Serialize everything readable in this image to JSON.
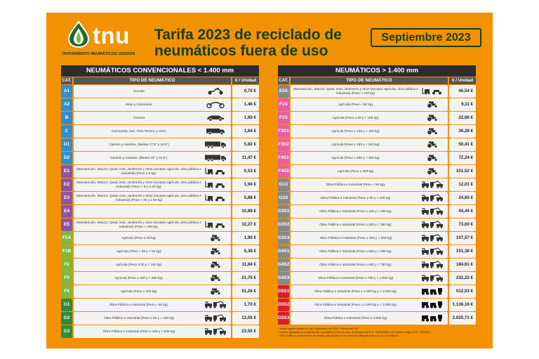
{
  "brand": {
    "logo_text": "tnu",
    "subtitle": "TRATAMIENTO NEUMÁTICOS USADOS"
  },
  "title": "Tarifa 2023 de reciclado de neumáticos fuera de uso",
  "date_label": "Septiembre 2023",
  "colors": {
    "background": "#f29200",
    "title_text": "#173d1c",
    "blue": "#2f8fcf",
    "purple": "#8d56a3",
    "green_light": "#7cba3b",
    "green_dark": "#2e8b3e",
    "pink": "#e9609d",
    "grey": "#888888",
    "red": "#d81e2b",
    "dark_header": "#2d2d2d"
  },
  "left_table": {
    "title": "NEUMÁTICOS CONVENCIONALES < 1.400 mm",
    "col_cat": "CAT.",
    "col_type": "TIPO DE NEUMÁTICO",
    "col_price": "€ / Unidad",
    "rows": [
      {
        "cat": "A1",
        "desc": "Scooter",
        "price": "0,70 €",
        "color": "#2f8fcf",
        "icon": "scooter-icon"
      },
      {
        "cat": "A2",
        "desc": "Moto y Ciclomotor",
        "price": "1,46 €",
        "color": "#2f8fcf",
        "icon": "motorcycle-icon"
      },
      {
        "cat": "B",
        "desc": "Turismo",
        "price": "1,60 €",
        "color": "#2f8fcf",
        "icon": "car-icon"
      },
      {
        "cat": "C",
        "desc": "Camioneta, 4x4, Todo Terreno y SUV.",
        "price": "1,84 €",
        "color": "#2f8fcf",
        "icon": "van-icon"
      },
      {
        "cat": "D1",
        "desc": "Camión y Autobús. (llantas 17,5\" y 19,5\")",
        "price": "5,82 €",
        "color": "#2f8fcf",
        "icon": "truck-icon"
      },
      {
        "cat": "D2",
        "desc": "Camión y Autobús. (llantas 20\" y 22,5\")",
        "price": "11,47 €",
        "color": "#2f8fcf",
        "icon": "truck-icon"
      },
      {
        "cat": "E1",
        "desc": "Manutención, Macizo, Quad, Kart, Jardinería y otros (excepto agrícola, obra pública e industrial) (Peso ≤ 5 kg).",
        "price": "0,53 €",
        "color": "#8d56a3",
        "icon": "forklift-quad-icon"
      },
      {
        "cat": "E2",
        "desc": "Manutención, Macizo, Quad, Kart, Jardinería y otros (excepto agrícola, obra pública e industrial) (Peso > 5 y ≤ 25 kg).",
        "price": "1,94 €",
        "color": "#8d56a3",
        "icon": "forklift-quad-icon"
      },
      {
        "cat": "E3",
        "desc": "Manutención, Macizo, Quad, Kart, Jardinería y otros (excepto agrícola, obra pública e industrial) (Peso > 25 y ≤ 50 kg)",
        "price": "5,88 €",
        "color": "#8d56a3",
        "icon": "forklift-quad-icon"
      },
      {
        "cat": "E4",
        "desc": "",
        "price": "10,89 €",
        "color": "#8d56a3",
        "icon": ""
      },
      {
        "cat": "E5",
        "desc": "Manutención, Macizo, Quad, Kart, Jardinería y otros (excepto agrícola, obra pública e industrial) (Peso > 100 kg).",
        "price": "32,27 €",
        "color": "#8d56a3",
        "icon": "forklift-quad-icon"
      },
      {
        "cat": "F1A",
        "desc": "Agrícola (Peso ≤ 25 kg).",
        "price": "1,90 €",
        "color": "#7cba3b",
        "icon": "tractor-icon"
      },
      {
        "cat": "F1B",
        "desc": "Agrícola (Peso > 25 y < 50 kg).",
        "price": "5,38 €",
        "color": "#7cba3b",
        "icon": "tractor-icon"
      },
      {
        "cat": "F2",
        "desc": "Agrícola (Peso ≥ 50 y < 100 kg).",
        "price": "11,84 €",
        "color": "#7cba3b",
        "icon": "tractor-icon"
      },
      {
        "cat": "F3",
        "desc": "Agrícola (Peso ≥ 100 y < 200 kg).",
        "price": "21,76 €",
        "color": "#7cba3b",
        "icon": "tractor-icon"
      },
      {
        "cat": "F4",
        "desc": "Agrícola (Peso ≥ 200 kg).",
        "price": "51,26 €",
        "color": "#7cba3b",
        "icon": "tractor-icon"
      },
      {
        "cat": "G1",
        "desc": "Obra Pública e Industrial (Peso < 50 kg).",
        "price": "1,70 €",
        "color": "#2e8b3e",
        "icon": "construction-icon"
      },
      {
        "cat": "G2",
        "desc": "Obra Pública e Industrial (Peso ≥ 50 y < 100 kg)",
        "price": "13,05 €",
        "color": "#2e8b3e",
        "icon": "construction-icon"
      },
      {
        "cat": "G3",
        "desc": "Obra Pública e Industrial (Peso ≥ 100 y < 500 kg)",
        "price": "23,50 €",
        "color": "#2e8b3e",
        "icon": "construction-icon"
      }
    ]
  },
  "right_table": {
    "title": "NEUMÁTICOS > 1.400 mm",
    "col_cat": "CAT.",
    "col_type": "TIPO DE NEUMÁTICO",
    "col_price": "€ / Unidad",
    "rows": [
      {
        "cat": "E5S",
        "desc": "Manutención, Macizo, Quad, Kart, Jardinería y otros (excepto agrícola, obra pública e industrial) (Peso > 100 kg).",
        "price": "46,54 €",
        "color": "#888888",
        "icon": "forklift-quad-icon"
      },
      {
        "cat": "F1S",
        "desc": "Agrícola (Peso < 50 kg).",
        "price": "9,11 €",
        "color": "#e9609d",
        "icon": "tractor-icon"
      },
      {
        "cat": "F2S",
        "desc": "Agrícola (Peso ≥ 50 y < 100 kg).",
        "price": "22,66 €",
        "color": "#e9609d",
        "icon": "tractor-icon"
      },
      {
        "cat": "F3S1",
        "desc": "Agrícola (Peso ≥ 100 y < 150 kg).",
        "price": "36,28 €",
        "color": "#e9609d",
        "icon": "tractor-icon"
      },
      {
        "cat": "F3S2",
        "desc": "Agrícola (Peso ≥ 150 y < 200 kg).",
        "price": "50,41 €",
        "color": "#e9609d",
        "icon": "tractor-icon"
      },
      {
        "cat": "F4S1",
        "desc": "Agrícola (Peso ≥ 200 y < 300 kg).",
        "price": "72,24 €",
        "color": "#e9609d",
        "icon": "tractor-icon"
      },
      {
        "cat": "F4S2",
        "desc": "Agrícola (Peso ≥ 300 kg).",
        "price": "101,52 €",
        "color": "#e9609d",
        "icon": "tractor-icon"
      },
      {
        "cat": "G1S",
        "desc": "Obra Pública e Industrial (Peso < 50 kg).",
        "price": "12,01 €",
        "color": "#888888",
        "icon": "construction-icon"
      },
      {
        "cat": "G2S",
        "desc": "Obra Pública e Industrial (Peso ≥ 50 y < 100 kg).",
        "price": "24,65 €",
        "color": "#888888",
        "icon": "construction-icon"
      },
      {
        "cat": "G3S1",
        "desc": "Obra Pública e Industrial (Peso ≥ 100 y < 200 kg).",
        "price": "44,44 €",
        "color": "#888888",
        "icon": "construction-icon"
      },
      {
        "cat": "G3S2",
        "desc": "Obra Pública e Industrial (Peso ≥ 200 y < 350 kg).",
        "price": "73,60 €",
        "color": "#888888",
        "icon": "construction-icon"
      },
      {
        "cat": "G3S3",
        "desc": "Obra Pública e Industrial (Peso ≥ 350 y < 500 kg)",
        "price": "107,57 €",
        "color": "#888888",
        "icon": "construction-icon"
      },
      {
        "cat": "G4S1",
        "desc": "Obra Pública e Industrial (Peso ≥ 500 y < 600 kg).",
        "price": "151,38 €",
        "color": "#888888",
        "icon": "construction-icon"
      },
      {
        "cat": "G4S2",
        "desc": "Obra Pública e Industrial (Peso ≥ 600 y < 750 kg).",
        "price": "184,61 €",
        "color": "#888888",
        "icon": "construction-icon"
      },
      {
        "cat": "G4S3",
        "desc": "Obra Pública e Industrial (Peso ≥ 750 y < 1.000 kg)",
        "price": "232,22 €",
        "color": "#888888",
        "icon": "construction-icon"
      },
      {
        "cat": "G5S1",
        "desc": "Obra Pública e Industrial (Peso ≥ 1.000 kg y < 2.000 kg).",
        "price": "512,03 €",
        "color": "#d81e2b",
        "icon": "heavy-machinery-icon"
      },
      {
        "cat": "G5S2",
        "desc": "Obra Pública e Industrial (Peso ≥ 2.000 kg y < 3.000 kg).",
        "price": "1.136,16 €",
        "color": "#d81e2b",
        "icon": "heavy-machinery-icon"
      },
      {
        "cat": "G5S3",
        "desc": "Obra Pública e Industrial (Peso ≥ 3.000 kg).",
        "price": "2.025,71 €",
        "color": "#d81e2b",
        "icon": "heavy-machinery-icon"
      }
    ]
  },
  "notes": [
    "• Tarifa vigente desde el 1 de Septiembre de 2023. Precios sin IVA.",
    "• Costes aplicables a la gestión de neumáticos fuera de uso, al amparo del R.D. 1619/2005 y su revisión según R.D. 731/2020.",
    "• TNU facilita a continuación un listado para ayudar en la correcta categorización de los neumáticos."
  ]
}
